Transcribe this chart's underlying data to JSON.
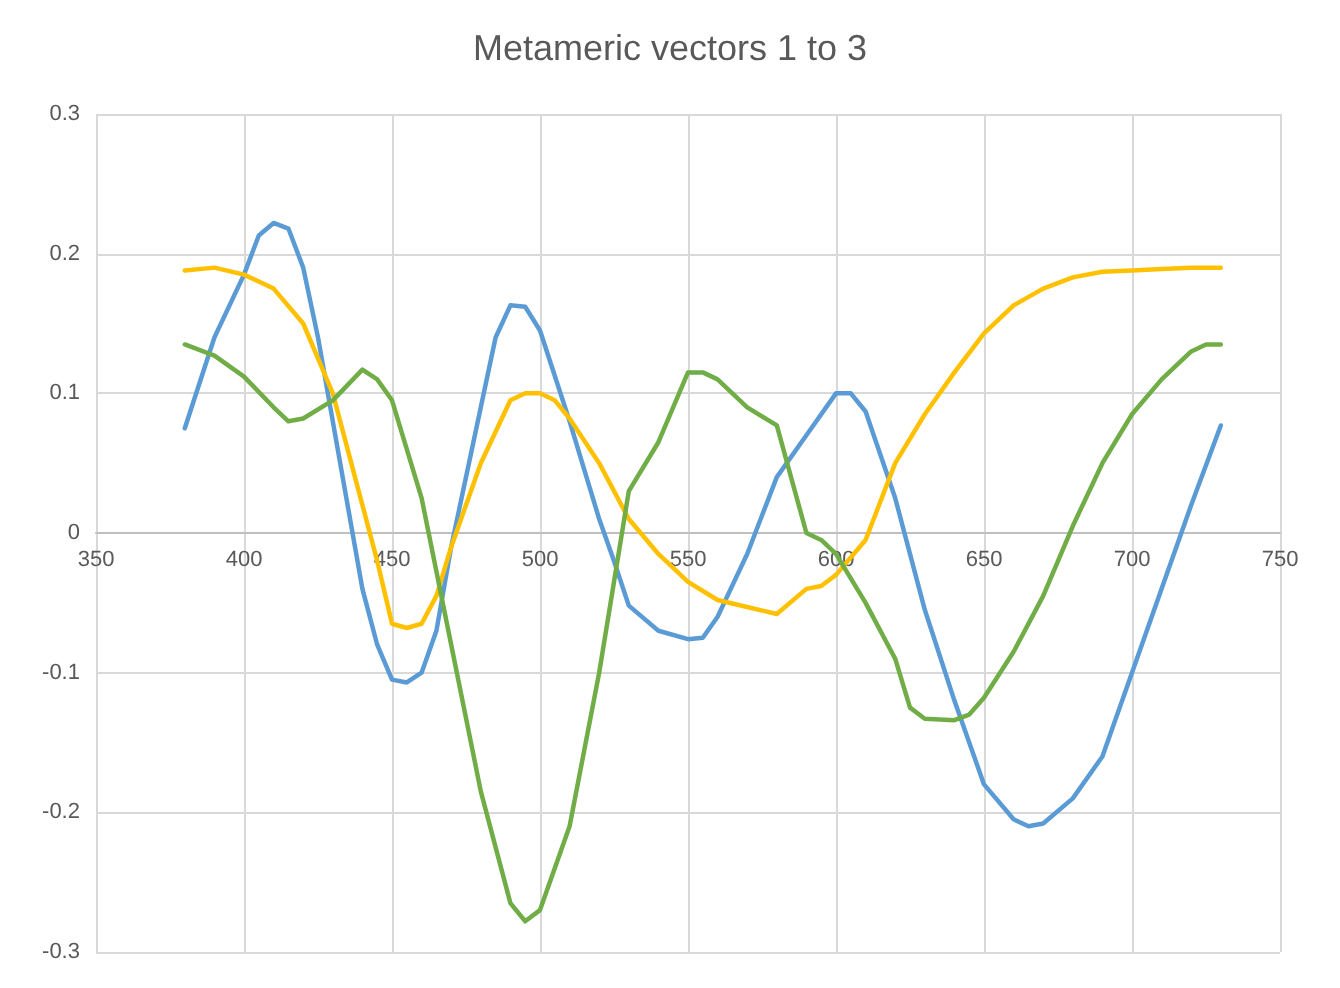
{
  "chart_data": {
    "type": "line",
    "title": "Metameric vectors 1 to 3",
    "xlim": [
      350,
      750
    ],
    "xticks": [
      350,
      400,
      450,
      500,
      550,
      600,
      650,
      700,
      750
    ],
    "ylim": [
      -0.3,
      0.3
    ],
    "yticks": [
      -0.3,
      -0.2,
      -0.1,
      0,
      0.1,
      0.2,
      0.3
    ],
    "grid": true,
    "marker": "none",
    "line_style": "solid",
    "series": [
      {
        "color": "#5b9bd5",
        "x": [
          380,
          390,
          400,
          405,
          410,
          415,
          420,
          425,
          430,
          440,
          445,
          450,
          455,
          460,
          465,
          470,
          480,
          485,
          490,
          495,
          500,
          510,
          520,
          525,
          530,
          540,
          550,
          555,
          560,
          570,
          580,
          590,
          600,
          605,
          610,
          620,
          630,
          640,
          650,
          660,
          665,
          670,
          680,
          690,
          700,
          710,
          720,
          730
        ],
        "values": [
          0.075,
          0.14,
          0.185,
          0.213,
          0.222,
          0.218,
          0.19,
          0.14,
          0.08,
          -0.04,
          -0.08,
          -0.105,
          -0.107,
          -0.1,
          -0.07,
          -0.01,
          0.09,
          0.14,
          0.163,
          0.162,
          0.145,
          0.08,
          0.01,
          -0.02,
          -0.052,
          -0.07,
          -0.076,
          -0.075,
          -0.06,
          -0.015,
          0.04,
          0.07,
          0.1,
          0.1,
          0.087,
          0.025,
          -0.055,
          -0.12,
          -0.18,
          -0.205,
          -0.21,
          -0.208,
          -0.19,
          -0.16,
          -0.1,
          -0.04,
          0.02,
          0.077
        ]
      },
      {
        "color": "#ffc000",
        "x": [
          380,
          390,
          400,
          410,
          420,
          430,
          440,
          445,
          450,
          455,
          460,
          465,
          470,
          480,
          490,
          495,
          500,
          505,
          510,
          520,
          530,
          540,
          550,
          560,
          570,
          580,
          590,
          595,
          600,
          610,
          620,
          630,
          640,
          650,
          660,
          670,
          680,
          690,
          700,
          710,
          720,
          730
        ],
        "values": [
          0.188,
          0.19,
          0.185,
          0.175,
          0.15,
          0.1,
          0.02,
          -0.02,
          -0.065,
          -0.068,
          -0.065,
          -0.045,
          -0.01,
          0.05,
          0.095,
          0.1,
          0.1,
          0.095,
          0.082,
          0.05,
          0.01,
          -0.015,
          -0.035,
          -0.048,
          -0.053,
          -0.058,
          -0.04,
          -0.038,
          -0.03,
          -0.005,
          0.05,
          0.085,
          0.115,
          0.143,
          0.163,
          0.175,
          0.183,
          0.187,
          0.188,
          0.189,
          0.19,
          0.19
        ]
      },
      {
        "color": "#70ad47",
        "x": [
          380,
          390,
          400,
          410,
          415,
          420,
          430,
          440,
          445,
          450,
          460,
          470,
          480,
          490,
          495,
          500,
          510,
          520,
          530,
          540,
          550,
          555,
          560,
          570,
          580,
          590,
          595,
          600,
          610,
          620,
          625,
          630,
          640,
          645,
          650,
          660,
          670,
          680,
          690,
          700,
          710,
          720,
          725,
          730
        ],
        "values": [
          0.135,
          0.127,
          0.112,
          0.09,
          0.08,
          0.082,
          0.095,
          0.117,
          0.11,
          0.095,
          0.025,
          -0.08,
          -0.185,
          -0.265,
          -0.278,
          -0.27,
          -0.21,
          -0.1,
          0.03,
          0.065,
          0.115,
          0.115,
          0.11,
          0.09,
          0.077,
          0.0,
          -0.005,
          -0.015,
          -0.05,
          -0.09,
          -0.125,
          -0.133,
          -0.134,
          -0.13,
          -0.118,
          -0.085,
          -0.045,
          0.005,
          0.05,
          0.085,
          0.11,
          0.13,
          0.135,
          0.135
        ]
      }
    ]
  }
}
